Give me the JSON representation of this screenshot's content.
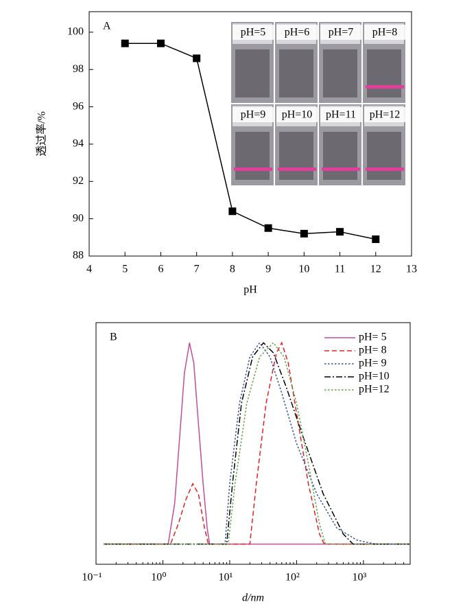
{
  "chart_data": [
    {
      "type": "line",
      "label": "A",
      "xlabel": "pH",
      "ylabel": "透过率/%",
      "marker": "square",
      "color": "#000000",
      "x": [
        5,
        6,
        7,
        8,
        9,
        10,
        11,
        12
      ],
      "values": [
        99.4,
        99.4,
        98.6,
        90.4,
        89.5,
        89.2,
        89.3,
        88.9
      ],
      "xlim": [
        4,
        13
      ],
      "xticks": [
        4,
        5,
        6,
        7,
        8,
        9,
        10,
        11,
        12,
        13
      ],
      "ylim": [
        88,
        101.1
      ],
      "yticks": [
        88,
        90,
        92,
        94,
        96,
        98,
        100
      ],
      "annotations": [
        "pH=5",
        "pH=6",
        "pH=7",
        "pH=8",
        "pH=9",
        "pH=10",
        "pH=11",
        "pH=12"
      ]
    },
    {
      "type": "line",
      "label": "B",
      "xlabel": "d/nm",
      "xscale": "log",
      "legend": "upper right",
      "xlim": [
        0.1,
        5000
      ],
      "xticks": [
        {
          "value": 0.1,
          "label": "10⁻¹"
        },
        {
          "value": 1,
          "label": "10⁰"
        },
        {
          "value": 10,
          "label": "10¹"
        },
        {
          "value": 100,
          "label": "10²"
        },
        {
          "value": 1000,
          "label": "10³"
        }
      ],
      "ylim": [
        -0.1,
        1.1
      ],
      "series": [
        {
          "name": "pH= 5",
          "color": "#c04c9a",
          "style": "solid",
          "x": [
            0.13,
            1.2,
            1.5,
            1.8,
            2.1,
            2.5,
            2.9,
            3.4,
            4,
            4.6,
            5,
            5000
          ],
          "values": [
            0,
            0,
            0.2,
            0.55,
            0.85,
            1.0,
            0.9,
            0.6,
            0.3,
            0.08,
            0,
            0
          ]
        },
        {
          "name": "pH= 8",
          "color": "#e02020",
          "style": "dashed",
          "x": [
            0.13,
            1.3,
            1.7,
            2.2,
            2.8,
            3.4,
            4.2,
            4.8,
            20,
            25,
            35,
            50,
            60,
            75,
            100,
            150,
            220,
            260,
            5000
          ],
          "values": [
            0,
            0,
            0.1,
            0.22,
            0.3,
            0.25,
            0.08,
            0,
            0,
            0.3,
            0.7,
            0.95,
            1.0,
            0.9,
            0.65,
            0.3,
            0.05,
            0,
            0
          ]
        },
        {
          "name": "pH= 9",
          "color": "#3050a0",
          "style": "dotted",
          "x": [
            0.13,
            8.5,
            10,
            14,
            20,
            28,
            40,
            60,
            100,
            200,
            400,
            800,
            1500,
            5000
          ],
          "values": [
            0,
            0,
            0.3,
            0.7,
            0.93,
            1.0,
            0.93,
            0.75,
            0.5,
            0.25,
            0.08,
            0.02,
            0,
            0
          ]
        },
        {
          "name": "pH=10",
          "color": "#000000",
          "style": "dashdot",
          "x": [
            0.13,
            9,
            11,
            15,
            22,
            32,
            45,
            70,
            120,
            250,
            500,
            700,
            5000
          ],
          "values": [
            0,
            0,
            0.3,
            0.7,
            0.93,
            1.0,
            0.95,
            0.78,
            0.55,
            0.25,
            0.05,
            0,
            0
          ]
        },
        {
          "name": "pH=12",
          "color": "#60a040",
          "style": "dotted",
          "x": [
            0.13,
            9.5,
            12,
            18,
            28,
            45,
            65,
            100,
            150,
            220,
            270,
            5000
          ],
          "values": [
            0,
            0,
            0.3,
            0.7,
            0.93,
            1.0,
            0.93,
            0.7,
            0.4,
            0.1,
            0,
            0
          ]
        }
      ]
    }
  ]
}
